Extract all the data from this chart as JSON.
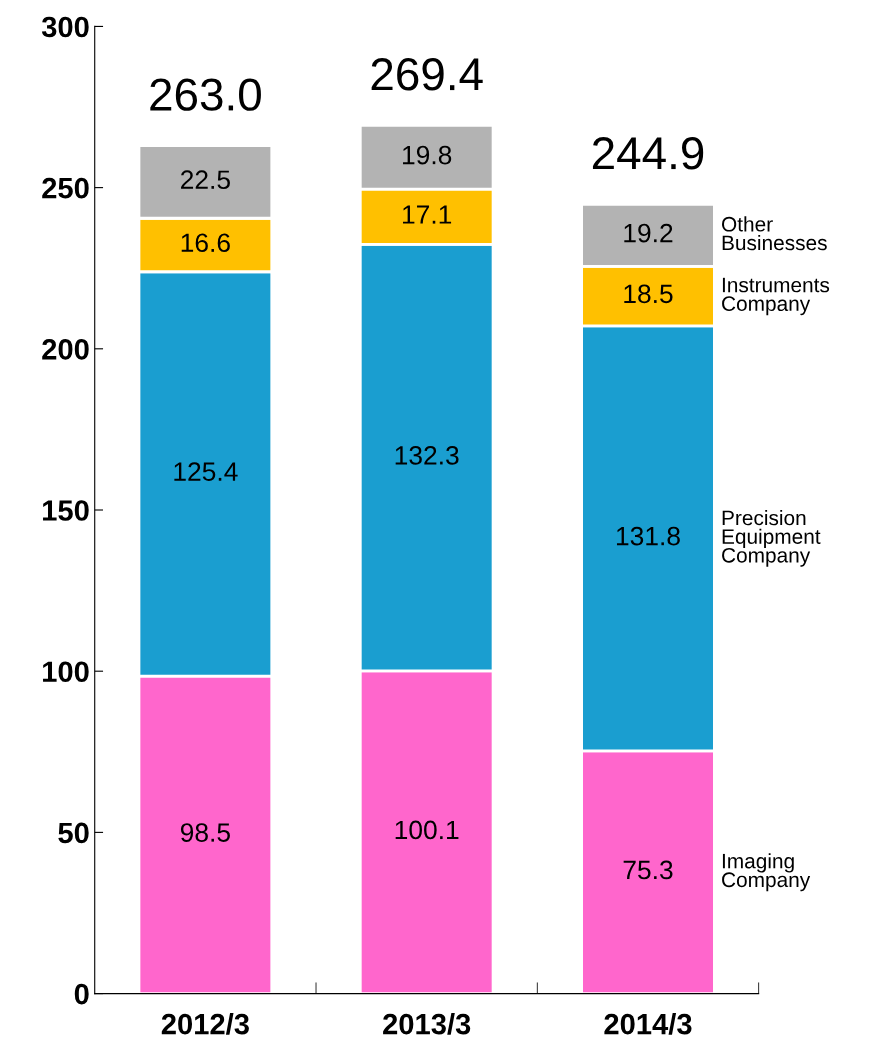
{
  "chart_data": {
    "type": "bar",
    "stacked": true,
    "categories": [
      "2012/3",
      "2013/3",
      "2014/3"
    ],
    "series": [
      {
        "name": "Imaging Company",
        "color": "#ff66cc",
        "values": [
          98.5,
          100.1,
          75.3
        ]
      },
      {
        "name": "Precision Equipment Company",
        "color": "#1a9ed0",
        "values": [
          125.4,
          132.3,
          131.8
        ]
      },
      {
        "name": "Instruments Company",
        "color": "#ffc000",
        "values": [
          16.6,
          17.1,
          18.5
        ]
      },
      {
        "name": "Other Businesses",
        "color": "#b3b3b3",
        "values": [
          22.5,
          19.8,
          19.2
        ]
      }
    ],
    "totals": [
      "263.0",
      "269.4",
      "244.9"
    ],
    "data_labels": true,
    "ylim": [
      0,
      300
    ],
    "yticks": [
      0,
      50,
      100,
      150,
      200,
      250,
      300
    ],
    "grid": false,
    "legend": false
  }
}
